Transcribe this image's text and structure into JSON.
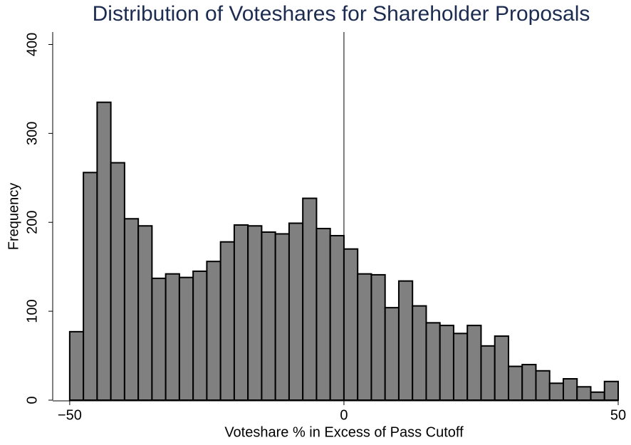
{
  "chart_data": {
    "type": "histogram",
    "title": "Distribution of Voteshares for Shareholder Proposals",
    "x_label": "Voteshare % in Excess of Pass Cutoff",
    "y_label": "Frequency",
    "bins": [
      -50,
      -47.5,
      -45,
      -42.5,
      -40,
      -37.5,
      -35,
      -32.5,
      -30,
      -27.5,
      -25,
      -22.5,
      -20,
      -17.5,
      -15,
      -12.5,
      -10,
      -7.5,
      -5,
      -2.5,
      0,
      2.5,
      5,
      7.5,
      10,
      12.5,
      15,
      17.5,
      20,
      22.5,
      25,
      27.5,
      30,
      32.5,
      35,
      37.5,
      40,
      42.5,
      45,
      47.5,
      50
    ],
    "values": [
      77,
      256,
      335,
      267,
      204,
      196,
      137,
      142,
      138,
      145,
      156,
      178,
      197,
      196,
      189,
      187,
      199,
      227,
      193,
      185,
      170,
      142,
      141,
      104,
      134,
      106,
      87,
      84,
      75,
      84,
      61,
      72,
      38,
      40,
      33,
      19,
      24,
      15,
      9,
      21
    ],
    "color": "#808080",
    "edge_color": "#000000",
    "xlim": [
      -53.1,
      50
    ],
    "ylim": [
      0,
      414
    ],
    "xticks": [
      {
        "value": -50,
        "label": "−50"
      },
      0,
      50
    ],
    "yticks": [
      0,
      100,
      200,
      300,
      400
    ],
    "vline": 0
  }
}
